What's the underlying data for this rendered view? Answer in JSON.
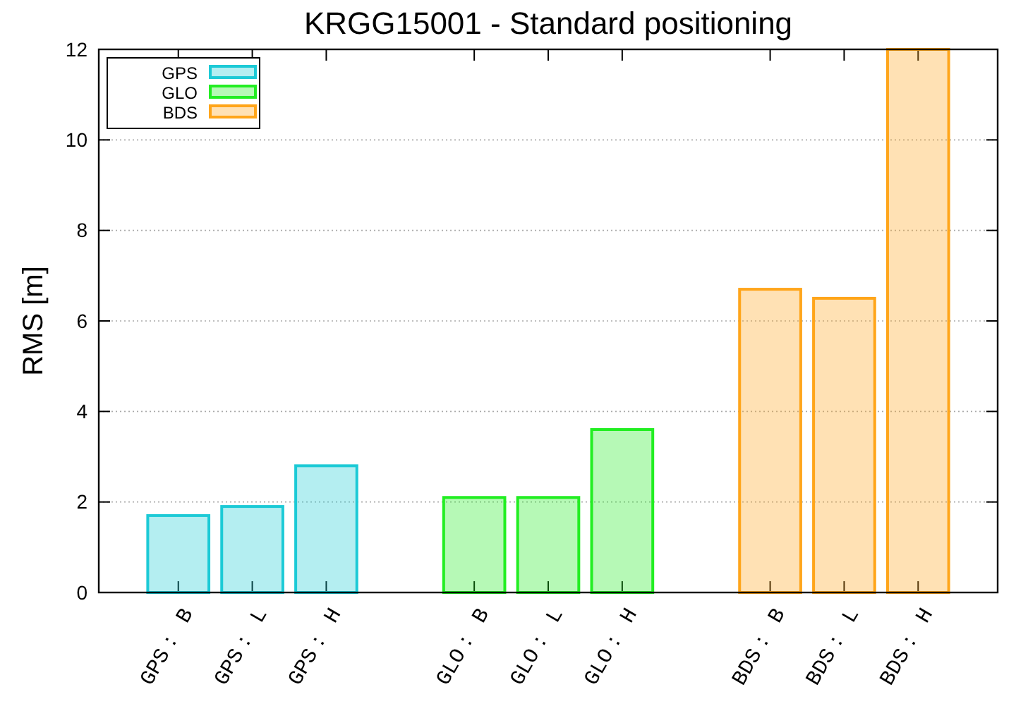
{
  "chart_data": {
    "type": "bar",
    "title": "KRGG15001 - Standard positioning",
    "ylabel": "RMS [m]",
    "categories": [
      "GPS： B",
      "GPS： L",
      "GPS： H",
      null,
      "GLO： B",
      "GLO： L",
      "GLO： H",
      null,
      "BDS： B",
      "BDS： L",
      "BDS： H"
    ],
    "series": [
      {
        "name": "GPS",
        "color": "#1ccad6",
        "values": [
          1.7,
          1.9,
          2.8,
          null,
          null,
          null,
          null,
          null,
          null,
          null,
          null
        ]
      },
      {
        "name": "GLO",
        "color": "#22ee22",
        "values": [
          null,
          null,
          null,
          null,
          2.1,
          2.1,
          3.6,
          null,
          null,
          null,
          null
        ]
      },
      {
        "name": "BDS",
        "color": "#ffa51a",
        "values": [
          null,
          null,
          null,
          null,
          null,
          null,
          null,
          null,
          6.7,
          6.5,
          12
        ]
      }
    ],
    "ylim": [
      0,
      12
    ],
    "yticks": [
      0,
      2,
      4,
      6,
      8,
      10,
      12
    ],
    "grid": "y",
    "legend": "top left"
  }
}
